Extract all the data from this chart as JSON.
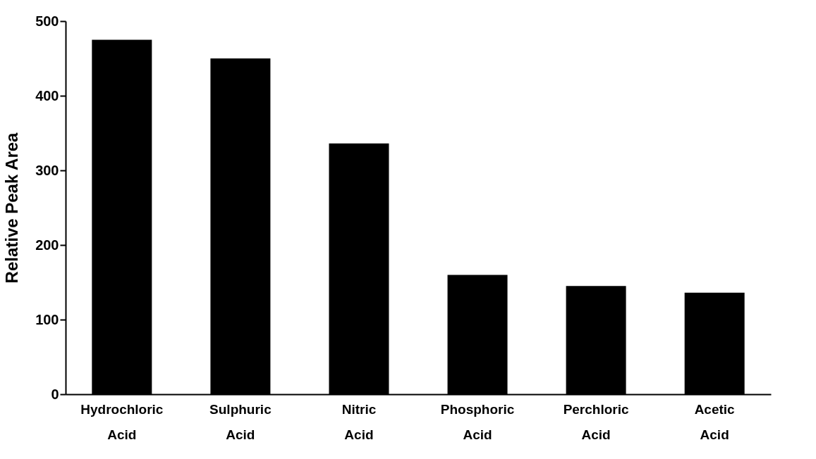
{
  "chart_data": {
    "type": "bar",
    "ylabel": "Relative Peak Area",
    "categories": [
      "Hydrochloric Acid",
      "Sulphuric Acid",
      "Nitric Acid",
      "Phosphoric Acid",
      "Perchloric Acid",
      "Acetic Acid"
    ],
    "values": [
      475,
      450,
      336,
      160,
      145,
      136
    ],
    "color": "#000000",
    "ylim": [
      0,
      500
    ],
    "yticks": [
      0,
      100,
      200,
      300,
      400,
      500
    ],
    "grid": false
  }
}
